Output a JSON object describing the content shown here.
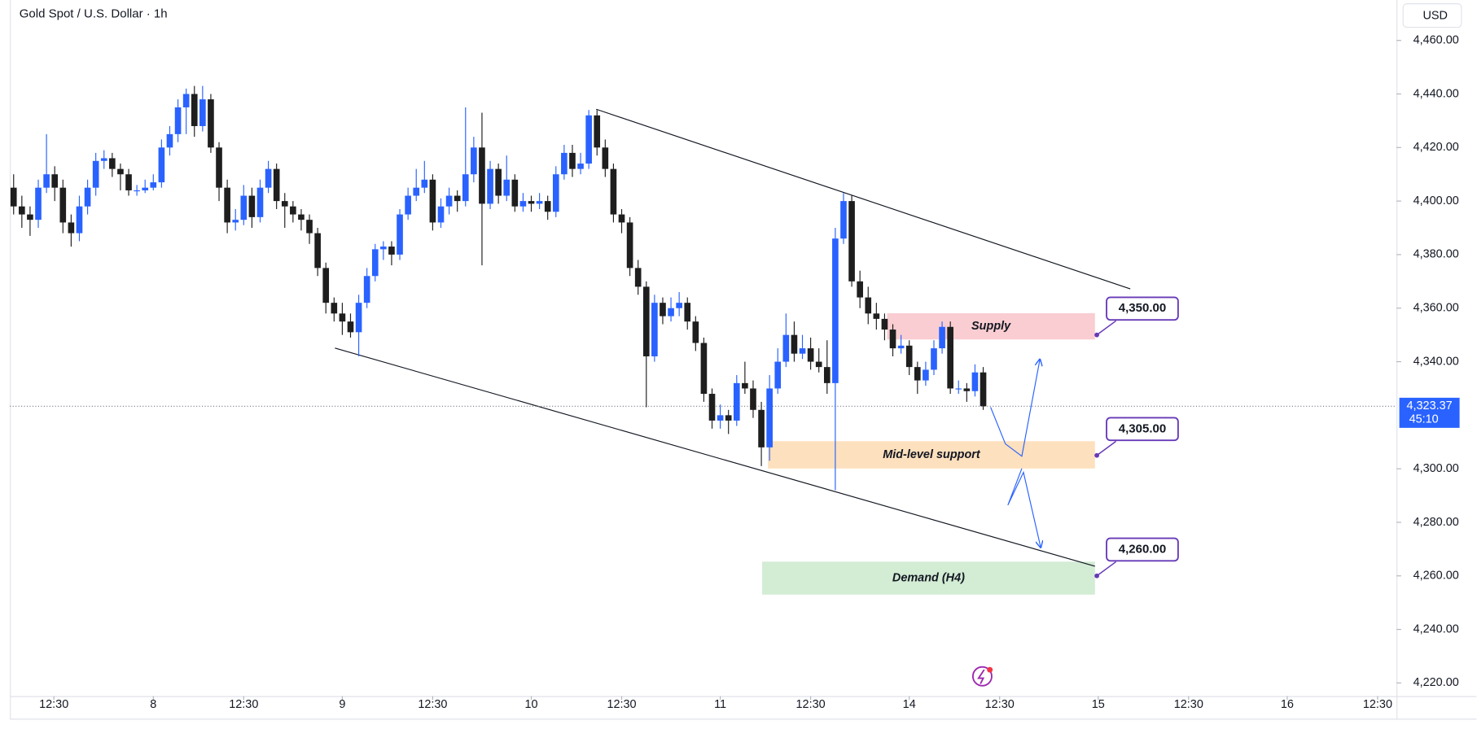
{
  "chart_data": {
    "type": "candlestick",
    "title": "Gold Spot / U.S. Dollar · 1h",
    "currency": "USD",
    "up_color": "#2962ff",
    "down_color": "#1e1e1e",
    "xlim": [
      -1.6,
      168.3
    ],
    "ylim": [
      4215.1,
      4475.1
    ],
    "xticks": [
      {
        "value": 4.9,
        "label": "12:30"
      },
      {
        "value": 17,
        "label": "8"
      },
      {
        "value": 28,
        "label": "12:30"
      },
      {
        "value": 40,
        "label": "9"
      },
      {
        "value": 51,
        "label": "12:30"
      },
      {
        "value": 63,
        "label": "10"
      },
      {
        "value": 74,
        "label": "12:30"
      },
      {
        "value": 86,
        "label": "11"
      },
      {
        "value": 97,
        "label": "12:30"
      },
      {
        "value": 109,
        "label": "14"
      },
      {
        "value": 120,
        "label": "12:30"
      },
      {
        "value": 132,
        "label": "15"
      },
      {
        "value": 143,
        "label": "12:30"
      },
      {
        "value": 155,
        "label": "16"
      },
      {
        "value": 166,
        "label": "12:30"
      }
    ],
    "yticks": [
      {
        "value": 4460,
        "label": "4,460.00"
      },
      {
        "value": 4440,
        "label": "4,440.00"
      },
      {
        "value": 4420,
        "label": "4,420.00"
      },
      {
        "value": 4400,
        "label": "4,400.00"
      },
      {
        "value": 4380,
        "label": "4,380.00"
      },
      {
        "value": 4360,
        "label": "4,360.00"
      },
      {
        "value": 4340,
        "label": "4,340.00"
      },
      {
        "value": 4300,
        "label": "4,300.00"
      },
      {
        "value": 4280,
        "label": "4,280.00"
      },
      {
        "value": 4260,
        "label": "4,260.00"
      },
      {
        "value": 4240,
        "label": "4,240.00"
      },
      {
        "value": 4220,
        "label": "4,220.00"
      }
    ],
    "last_price": {
      "value": 4323.37,
      "label": "4,323.37"
    },
    "countdown": "45:10",
    "x": [
      0,
      1,
      2,
      3,
      4,
      5,
      6,
      7,
      8,
      9,
      10,
      11,
      12,
      13,
      14,
      15,
      16,
      17,
      18,
      19,
      20,
      21,
      22,
      23,
      24,
      25,
      26,
      27,
      28,
      29,
      30,
      31,
      32,
      33,
      34,
      35,
      36,
      37,
      38,
      39,
      40,
      41,
      42,
      43,
      44,
      45,
      46,
      47,
      48,
      49,
      50,
      51,
      52,
      53,
      54,
      55,
      56,
      57,
      58,
      59,
      60,
      61,
      62,
      63,
      64,
      65,
      66,
      67,
      68,
      69,
      70,
      71,
      72,
      73,
      74,
      75,
      76,
      77,
      78,
      79,
      80,
      81,
      82,
      83,
      84,
      85,
      86,
      87,
      88,
      89,
      90,
      91,
      92,
      93,
      94,
      95,
      96,
      97,
      98,
      99,
      100,
      101,
      102,
      103,
      104,
      105,
      106,
      107,
      108,
      109,
      110,
      111,
      112,
      113,
      114,
      115,
      116,
      117,
      118
    ],
    "open": [
      4405,
      4398,
      4395,
      4393,
      4405,
      4410,
      4405,
      4392,
      4388,
      4398,
      4405,
      4415,
      4416,
      4412,
      4410,
      4404,
      4404,
      4405,
      4407,
      4420,
      4425,
      4435,
      4440,
      4428,
      4438,
      4420,
      4405,
      4392,
      4393,
      4402,
      4394,
      4405,
      4412,
      4400,
      4398,
      4395,
      4393,
      4388,
      4375,
      4362,
      4358,
      4355,
      4351,
      4362,
      4372,
      4382,
      4383,
      4380,
      4395,
      4402,
      4405,
      4408,
      4392,
      4398,
      4402,
      4400,
      4410,
      4420,
      4399,
      4412,
      4402,
      4408,
      4398,
      4400,
      4399,
      4400,
      4396,
      4410,
      4418,
      4412,
      4414,
      4432,
      4420,
      4412,
      4395,
      4392,
      4375,
      4368,
      4342,
      4362,
      4357,
      4360,
      4362,
      4355,
      4347,
      4328,
      4318,
      4320,
      4318,
      4332,
      4330,
      4322,
      4308,
      4330,
      4340,
      4350,
      4343,
      4345,
      4340,
      4338,
      4332,
      4386,
      4400,
      4370,
      4364,
      4358,
      4356,
      4352,
      4345,
      4346,
      4338,
      4333,
      4337,
      4345,
      4353,
      4330,
      4330,
      4329,
      4336
    ],
    "high": [
      4410,
      4402,
      4398,
      4408,
      4425,
      4413,
      4408,
      4395,
      4402,
      4408,
      4418,
      4419,
      4418,
      4414,
      4412,
      4406,
      4408,
      4410,
      4423,
      4428,
      4438,
      4442,
      4443,
      4443,
      4440,
      4422,
      4408,
      4397,
      4406,
      4405,
      4408,
      4415,
      4414,
      4403,
      4400,
      4397,
      4395,
      4390,
      4377,
      4364,
      4362,
      4358,
      4365,
      4375,
      4384,
      4385,
      4385,
      4397,
      4405,
      4412,
      4415,
      4410,
      4401,
      4405,
      4404,
      4435,
      4424,
      4433,
      4415,
      4414,
      4417,
      4410,
      4403,
      4402,
      4403,
      4402,
      4413,
      4421,
      4421,
      4418,
      4434,
      4434,
      4423,
      4414,
      4397,
      4394,
      4378,
      4370,
      4365,
      4364,
      4364,
      4366,
      4364,
      4357,
      4349,
      4330,
      4324,
      4322,
      4335,
      4340,
      4333,
      4325,
      4335,
      4345,
      4358,
      4355,
      4350,
      4349,
      4345,
      4348,
      4390,
      4403,
      4402,
      4374,
      4368,
      4362,
      4358,
      4354,
      4350,
      4348,
      4340,
      4340,
      4348,
      4355,
      4355,
      4333,
      4332,
      4339,
      4338
    ],
    "low": [
      4395,
      4390,
      4387,
      4390,
      4403,
      4400,
      4388,
      4383,
      4385,
      4395,
      4402,
      4412,
      4409,
      4404,
      4402,
      4402,
      4403,
      4404,
      4405,
      4417,
      4422,
      4425,
      4424,
      4426,
      4418,
      4400,
      4388,
      4389,
      4391,
      4390,
      4392,
      4403,
      4397,
      4390,
      4392,
      4389,
      4384,
      4372,
      4358,
      4355,
      4350,
      4349,
      4342,
      4360,
      4370,
      4378,
      4376,
      4378,
      4393,
      4400,
      4403,
      4389,
      4390,
      4395,
      4396,
      4398,
      4407,
      4376,
      4397,
      4399,
      4400,
      4396,
      4396,
      4396,
      4397,
      4393,
      4394,
      4408,
      4409,
      4410,
      4412,
      4417,
      4409,
      4392,
      4388,
      4372,
      4365,
      4323,
      4340,
      4354,
      4355,
      4357,
      4352,
      4344,
      4325,
      4315,
      4315,
      4313,
      4316,
      4328,
      4319,
      4301,
      4303,
      4328,
      4338,
      4340,
      4341,
      4337,
      4336,
      4328,
      4292,
      4384,
      4368,
      4360,
      4354,
      4352,
      4348,
      4342,
      4343,
      4335,
      4328,
      4331,
      4335,
      4343,
      4328,
      4328,
      4325,
      4327,
      4322
    ],
    "close": [
      4398,
      4395,
      4393,
      4405,
      4410,
      4405,
      4392,
      4388,
      4398,
      4405,
      4415,
      4416,
      4412,
      4410,
      4404,
      4404,
      4405,
      4407,
      4420,
      4425,
      4435,
      4440,
      4428,
      4438,
      4420,
      4405,
      4392,
      4393,
      4402,
      4394,
      4405,
      4412,
      4400,
      4398,
      4395,
      4393,
      4388,
      4375,
      4362,
      4358,
      4355,
      4351,
      4362,
      4372,
      4382,
      4383,
      4380,
      4395,
      4402,
      4405,
      4408,
      4392,
      4398,
      4402,
      4400,
      4410,
      4420,
      4399,
      4412,
      4402,
      4408,
      4398,
      4400,
      4399,
      4400,
      4396,
      4410,
      4418,
      4412,
      4414,
      4432,
      4420,
      4412,
      4395,
      4392,
      4375,
      4368,
      4342,
      4362,
      4357,
      4360,
      4362,
      4355,
      4347,
      4328,
      4318,
      4320,
      4318,
      4332,
      4330,
      4322,
      4308,
      4330,
      4340,
      4350,
      4343,
      4345,
      4340,
      4338,
      4332,
      4386,
      4400,
      4370,
      4364,
      4358,
      4356,
      4352,
      4345,
      4346,
      4338,
      4333,
      4337,
      4345,
      4353,
      4330,
      4330,
      4329,
      4336,
      4323.37
    ],
    "trendlines": [
      {
        "x": [
          70.9,
          135.9
        ],
        "y": [
          4434.3,
          4367.2
        ]
      },
      {
        "x": [
          39.1,
          131.6
        ],
        "y": [
          4345.1,
          4263.6
        ]
      }
    ],
    "projections": [
      {
        "x": [
          118.9,
          120.7,
          122.7,
          124.9
        ],
        "y": [
          4323.0,
          4309.3,
          4304.7,
          4340.9
        ]
      },
      {
        "x": [
          122.7,
          121.0,
          122.9,
          125.0
        ],
        "y": [
          4300.1,
          4286.4,
          4298.7,
          4270.6
        ]
      }
    ],
    "zones": [
      {
        "text": "Supply",
        "x_range": [
          106.3,
          131.6
        ],
        "y_range": [
          4348.3,
          4358.1
        ],
        "color": "#f9cdd1",
        "price": {
          "value": 4350,
          "label": "4,350.00"
        }
      },
      {
        "text": "Mid-level support",
        "x_range": [
          91.8,
          131.6
        ],
        "y_range": [
          4300.1,
          4310.3
        ],
        "color": "#fde0bd",
        "price": {
          "value": 4305,
          "label": "4,305.00"
        }
      },
      {
        "text": "Demand (H4)",
        "x_range": [
          91.1,
          131.6
        ],
        "y_range": [
          4253.0,
          4265.3
        ],
        "color": "#d3ecd4",
        "price": {
          "value": 4260,
          "label": "4,260.00"
        }
      }
    ]
  }
}
